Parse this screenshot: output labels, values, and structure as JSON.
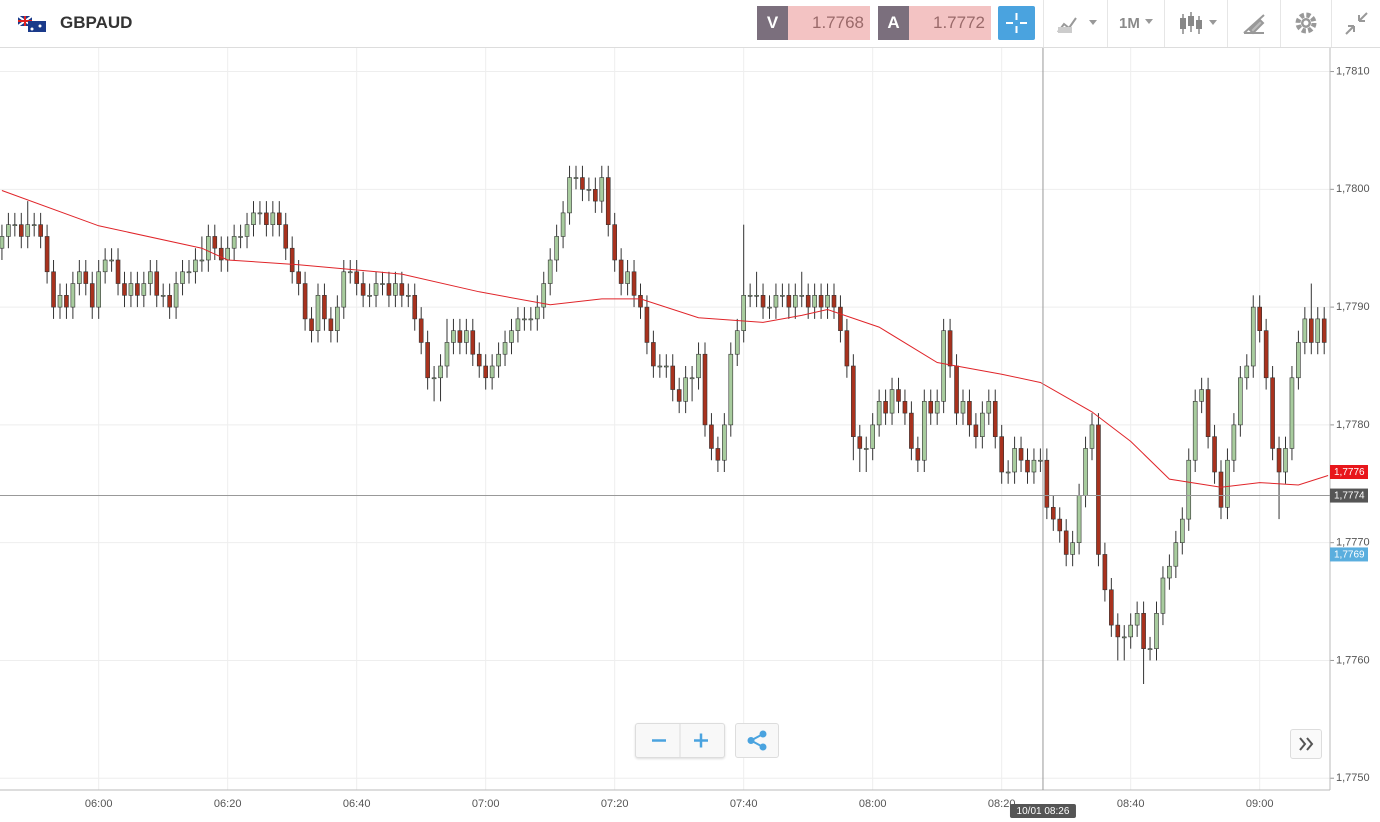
{
  "header": {
    "symbol": "GBPAUD",
    "bid_label": "V",
    "bid": "1.7768",
    "ask_label": "A",
    "ask": "1.7772",
    "timeframe": "1M"
  },
  "chart_data": {
    "type": "candlestick",
    "xlim": [
      -0.3,
      205.9
    ],
    "ylim": [
      1.7749,
      1.7812
    ],
    "xticks": [
      {
        "value": 15,
        "label": "06:00"
      },
      {
        "value": 35,
        "label": "06:20"
      },
      {
        "value": 55,
        "label": "06:40"
      },
      {
        "value": 75,
        "label": "07:00"
      },
      {
        "value": 95,
        "label": "07:20"
      },
      {
        "value": 115,
        "label": "07:40"
      },
      {
        "value": 135,
        "label": "08:00"
      },
      {
        "value": 155,
        "label": "08:20"
      },
      {
        "value": 175,
        "label": "08:40"
      },
      {
        "value": 195,
        "label": "09:00"
      }
    ],
    "yticks": [
      {
        "value": 1.781,
        "label": "1,7810"
      },
      {
        "value": 1.78,
        "label": "1,7800"
      },
      {
        "value": 1.779,
        "label": "1,7790"
      },
      {
        "value": 1.778,
        "label": "1,7780"
      },
      {
        "value": 1.777,
        "label": "1,7770"
      },
      {
        "value": 1.776,
        "label": "1,7760"
      },
      {
        "value": 1.775,
        "label": "1,7750"
      }
    ],
    "grid": true,
    "up_color": "#a8cc9e",
    "down_color": "#a8321e",
    "ohlc": [
      [
        1.7795,
        1.7797,
        1.7794,
        1.7796
      ],
      [
        1.7796,
        1.7798,
        1.7795,
        1.7797
      ],
      [
        1.7797,
        1.7798,
        1.7796,
        1.7797
      ],
      [
        1.7797,
        1.7798,
        1.7795,
        1.7796
      ],
      [
        1.7796,
        1.7799,
        1.7795,
        1.7797
      ],
      [
        1.7797,
        1.7798,
        1.7796,
        1.7797
      ],
      [
        1.7797,
        1.7798,
        1.7795,
        1.7796
      ],
      [
        1.7796,
        1.7797,
        1.7792,
        1.7793
      ],
      [
        1.7793,
        1.7794,
        1.7789,
        1.779
      ],
      [
        1.779,
        1.7792,
        1.7789,
        1.7791
      ],
      [
        1.7791,
        1.7792,
        1.7789,
        1.779
      ],
      [
        1.779,
        1.7793,
        1.7789,
        1.7792
      ],
      [
        1.7792,
        1.7794,
        1.7791,
        1.7793
      ],
      [
        1.7793,
        1.7794,
        1.7791,
        1.7792
      ],
      [
        1.7792,
        1.7793,
        1.7789,
        1.779
      ],
      [
        1.779,
        1.7794,
        1.7789,
        1.7793
      ],
      [
        1.7793,
        1.7795,
        1.7792,
        1.7794
      ],
      [
        1.7794,
        1.7795,
        1.7793,
        1.7794
      ],
      [
        1.7794,
        1.7795,
        1.7791,
        1.7792
      ],
      [
        1.7792,
        1.7793,
        1.779,
        1.7791
      ],
      [
        1.7791,
        1.7793,
        1.779,
        1.7792
      ],
      [
        1.7792,
        1.7793,
        1.779,
        1.7791
      ],
      [
        1.7791,
        1.7793,
        1.779,
        1.7792
      ],
      [
        1.7792,
        1.7794,
        1.7791,
        1.7793
      ],
      [
        1.7793,
        1.7794,
        1.779,
        1.7791
      ],
      [
        1.7791,
        1.7792,
        1.779,
        1.7791
      ],
      [
        1.7791,
        1.7792,
        1.7789,
        1.779
      ],
      [
        1.779,
        1.7793,
        1.7789,
        1.7792
      ],
      [
        1.7792,
        1.7794,
        1.7791,
        1.7793
      ],
      [
        1.7793,
        1.7794,
        1.7792,
        1.7793
      ],
      [
        1.7793,
        1.7795,
        1.7792,
        1.7794
      ],
      [
        1.7794,
        1.7796,
        1.7793,
        1.7794
      ],
      [
        1.7794,
        1.7797,
        1.7793,
        1.7796
      ],
      [
        1.7796,
        1.7797,
        1.7794,
        1.7795
      ],
      [
        1.7795,
        1.7796,
        1.7793,
        1.7794
      ],
      [
        1.7794,
        1.7796,
        1.7793,
        1.7795
      ],
      [
        1.7795,
        1.7797,
        1.7794,
        1.7796
      ],
      [
        1.7796,
        1.7797,
        1.7795,
        1.7796
      ],
      [
        1.7796,
        1.7798,
        1.7795,
        1.7797
      ],
      [
        1.7797,
        1.7799,
        1.7796,
        1.7798
      ],
      [
        1.7798,
        1.7799,
        1.7797,
        1.7798
      ],
      [
        1.7798,
        1.7799,
        1.7796,
        1.7797
      ],
      [
        1.7797,
        1.7799,
        1.7796,
        1.7798
      ],
      [
        1.7798,
        1.7799,
        1.7796,
        1.7797
      ],
      [
        1.7797,
        1.7798,
        1.7794,
        1.7795
      ],
      [
        1.7795,
        1.7796,
        1.7792,
        1.7793
      ],
      [
        1.7793,
        1.7794,
        1.7791,
        1.7792
      ],
      [
        1.7792,
        1.7793,
        1.7788,
        1.7789
      ],
      [
        1.7789,
        1.779,
        1.7787,
        1.7788
      ],
      [
        1.7788,
        1.7792,
        1.7787,
        1.7791
      ],
      [
        1.7791,
        1.7792,
        1.7788,
        1.7789
      ],
      [
        1.7789,
        1.779,
        1.7787,
        1.7788
      ],
      [
        1.7788,
        1.7791,
        1.7787,
        1.779
      ],
      [
        1.779,
        1.7794,
        1.7789,
        1.7793
      ],
      [
        1.7793,
        1.7794,
        1.7792,
        1.7793
      ],
      [
        1.7793,
        1.7794,
        1.7791,
        1.7792
      ],
      [
        1.7792,
        1.7793,
        1.779,
        1.7791
      ],
      [
        1.7791,
        1.7792,
        1.779,
        1.7791
      ],
      [
        1.7791,
        1.7793,
        1.779,
        1.7792
      ],
      [
        1.7792,
        1.7793,
        1.7791,
        1.7792
      ],
      [
        1.7792,
        1.7793,
        1.779,
        1.7791
      ],
      [
        1.7791,
        1.7793,
        1.779,
        1.7792
      ],
      [
        1.7792,
        1.7793,
        1.779,
        1.7791
      ],
      [
        1.7791,
        1.7792,
        1.779,
        1.7791
      ],
      [
        1.7791,
        1.7792,
        1.7788,
        1.7789
      ],
      [
        1.7789,
        1.779,
        1.7786,
        1.7787
      ],
      [
        1.7787,
        1.7788,
        1.7783,
        1.7784
      ],
      [
        1.7784,
        1.7785,
        1.7782,
        1.7784
      ],
      [
        1.7784,
        1.7786,
        1.7782,
        1.7785
      ],
      [
        1.7785,
        1.7789,
        1.7784,
        1.7787
      ],
      [
        1.7787,
        1.7789,
        1.7786,
        1.7788
      ],
      [
        1.7788,
        1.7789,
        1.7786,
        1.7787
      ],
      [
        1.7787,
        1.7789,
        1.7786,
        1.7788
      ],
      [
        1.7788,
        1.7789,
        1.7785,
        1.7786
      ],
      [
        1.7786,
        1.7787,
        1.7784,
        1.7785
      ],
      [
        1.7785,
        1.7786,
        1.7783,
        1.7784
      ],
      [
        1.7784,
        1.7786,
        1.7783,
        1.7785
      ],
      [
        1.7785,
        1.7787,
        1.7784,
        1.7786
      ],
      [
        1.7786,
        1.7788,
        1.7785,
        1.7787
      ],
      [
        1.7787,
        1.7789,
        1.7786,
        1.7788
      ],
      [
        1.7788,
        1.779,
        1.7787,
        1.7789
      ],
      [
        1.7789,
        1.779,
        1.7788,
        1.7789
      ],
      [
        1.7789,
        1.779,
        1.7788,
        1.7789
      ],
      [
        1.7789,
        1.7791,
        1.7788,
        1.779
      ],
      [
        1.779,
        1.7793,
        1.7789,
        1.7792
      ],
      [
        1.7792,
        1.7795,
        1.7791,
        1.7794
      ],
      [
        1.7794,
        1.7797,
        1.7793,
        1.7796
      ],
      [
        1.7796,
        1.7799,
        1.7795,
        1.7798
      ],
      [
        1.7798,
        1.7802,
        1.7797,
        1.7801
      ],
      [
        1.7801,
        1.7802,
        1.78,
        1.7801
      ],
      [
        1.7801,
        1.7802,
        1.7799,
        1.78
      ],
      [
        1.78,
        1.7801,
        1.7799,
        1.78
      ],
      [
        1.78,
        1.7801,
        1.7798,
        1.7799
      ],
      [
        1.7799,
        1.7802,
        1.7798,
        1.7801
      ],
      [
        1.7801,
        1.7802,
        1.7796,
        1.7797
      ],
      [
        1.7797,
        1.7798,
        1.7793,
        1.7794
      ],
      [
        1.7794,
        1.7795,
        1.7791,
        1.7792
      ],
      [
        1.7792,
        1.7794,
        1.7791,
        1.7793
      ],
      [
        1.7793,
        1.7794,
        1.779,
        1.7791
      ],
      [
        1.7791,
        1.7792,
        1.7789,
        1.779
      ],
      [
        1.779,
        1.7791,
        1.7786,
        1.7787
      ],
      [
        1.7787,
        1.7788,
        1.7784,
        1.7785
      ],
      [
        1.7785,
        1.7786,
        1.7784,
        1.7785
      ],
      [
        1.7785,
        1.7786,
        1.7784,
        1.7785
      ],
      [
        1.7785,
        1.7786,
        1.7782,
        1.7783
      ],
      [
        1.7783,
        1.7784,
        1.7781,
        1.7782
      ],
      [
        1.7782,
        1.7785,
        1.7781,
        1.7784
      ],
      [
        1.7784,
        1.7785,
        1.7782,
        1.7784
      ],
      [
        1.7784,
        1.7787,
        1.7783,
        1.7786
      ],
      [
        1.7786,
        1.7787,
        1.7779,
        1.778
      ],
      [
        1.778,
        1.7781,
        1.7777,
        1.7778
      ],
      [
        1.7778,
        1.7779,
        1.7776,
        1.7777
      ],
      [
        1.7777,
        1.7781,
        1.7776,
        1.778
      ],
      [
        1.778,
        1.7787,
        1.7779,
        1.7786
      ],
      [
        1.7786,
        1.7789,
        1.7785,
        1.7788
      ],
      [
        1.7788,
        1.7797,
        1.7787,
        1.7791
      ],
      [
        1.7791,
        1.7792,
        1.779,
        1.7791
      ],
      [
        1.7791,
        1.7793,
        1.779,
        1.7791
      ],
      [
        1.7791,
        1.7792,
        1.7789,
        1.779
      ],
      [
        1.779,
        1.7791,
        1.7789,
        1.779
      ],
      [
        1.779,
        1.7792,
        1.7789,
        1.7791
      ],
      [
        1.7791,
        1.7792,
        1.779,
        1.7791
      ],
      [
        1.7791,
        1.7792,
        1.7789,
        1.779
      ],
      [
        1.779,
        1.7792,
        1.7789,
        1.7791
      ],
      [
        1.7791,
        1.7793,
        1.779,
        1.7791
      ],
      [
        1.7791,
        1.7792,
        1.7789,
        1.779
      ],
      [
        1.779,
        1.7792,
        1.7789,
        1.7791
      ],
      [
        1.7791,
        1.7792,
        1.7789,
        1.779
      ],
      [
        1.779,
        1.7792,
        1.7789,
        1.7791
      ],
      [
        1.7791,
        1.7792,
        1.7789,
        1.779
      ],
      [
        1.779,
        1.7791,
        1.7787,
        1.7788
      ],
      [
        1.7788,
        1.7789,
        1.7784,
        1.7785
      ],
      [
        1.7785,
        1.7786,
        1.7777,
        1.7779
      ],
      [
        1.7779,
        1.778,
        1.7776,
        1.7778
      ],
      [
        1.7778,
        1.7779,
        1.7776,
        1.7778
      ],
      [
        1.7778,
        1.7781,
        1.7777,
        1.778
      ],
      [
        1.778,
        1.7783,
        1.7779,
        1.7782
      ],
      [
        1.7782,
        1.7783,
        1.778,
        1.7781
      ],
      [
        1.7781,
        1.7784,
        1.778,
        1.7783
      ],
      [
        1.7783,
        1.7784,
        1.7781,
        1.7782
      ],
      [
        1.7782,
        1.7783,
        1.778,
        1.7781
      ],
      [
        1.7781,
        1.7782,
        1.7777,
        1.7778
      ],
      [
        1.7778,
        1.7779,
        1.7776,
        1.7777
      ],
      [
        1.7777,
        1.7783,
        1.7776,
        1.7782
      ],
      [
        1.7782,
        1.7783,
        1.778,
        1.7781
      ],
      [
        1.7781,
        1.7783,
        1.778,
        1.7782
      ],
      [
        1.7782,
        1.7789,
        1.7781,
        1.7788
      ],
      [
        1.7788,
        1.7789,
        1.7784,
        1.7785
      ],
      [
        1.7785,
        1.7786,
        1.778,
        1.7781
      ],
      [
        1.7781,
        1.7783,
        1.778,
        1.7782
      ],
      [
        1.7782,
        1.7783,
        1.7779,
        1.778
      ],
      [
        1.778,
        1.7781,
        1.7778,
        1.7779
      ],
      [
        1.7779,
        1.7782,
        1.7778,
        1.7781
      ],
      [
        1.7781,
        1.7783,
        1.778,
        1.7782
      ],
      [
        1.7782,
        1.7783,
        1.7778,
        1.7779
      ],
      [
        1.7779,
        1.778,
        1.7775,
        1.7776
      ],
      [
        1.7776,
        1.7777,
        1.7775,
        1.7776
      ],
      [
        1.7776,
        1.7779,
        1.7775,
        1.7778
      ],
      [
        1.7778,
        1.7779,
        1.7776,
        1.7777
      ],
      [
        1.7777,
        1.7778,
        1.7775,
        1.7776
      ],
      [
        1.7776,
        1.7778,
        1.7775,
        1.7777
      ],
      [
        1.7777,
        1.7778,
        1.7776,
        1.7777
      ],
      [
        1.7777,
        1.7778,
        1.7772,
        1.7773
      ],
      [
        1.7773,
        1.7774,
        1.7771,
        1.7772
      ],
      [
        1.7772,
        1.7773,
        1.777,
        1.7771
      ],
      [
        1.7771,
        1.7772,
        1.7768,
        1.7769
      ],
      [
        1.7769,
        1.7771,
        1.7768,
        1.777
      ],
      [
        1.777,
        1.7775,
        1.7769,
        1.7774
      ],
      [
        1.7774,
        1.7779,
        1.7773,
        1.7778
      ],
      [
        1.7778,
        1.7781,
        1.7777,
        1.778
      ],
      [
        1.778,
        1.7781,
        1.7768,
        1.7769
      ],
      [
        1.7769,
        1.777,
        1.7765,
        1.7766
      ],
      [
        1.7766,
        1.7767,
        1.7762,
        1.7763
      ],
      [
        1.7763,
        1.7764,
        1.776,
        1.7762
      ],
      [
        1.7762,
        1.7763,
        1.776,
        1.7762
      ],
      [
        1.7762,
        1.7764,
        1.7761,
        1.7763
      ],
      [
        1.7763,
        1.7765,
        1.7762,
        1.7764
      ],
      [
        1.7764,
        1.7765,
        1.7758,
        1.7761
      ],
      [
        1.7761,
        1.7762,
        1.776,
        1.7761
      ],
      [
        1.7761,
        1.7765,
        1.776,
        1.7764
      ],
      [
        1.7764,
        1.7768,
        1.7763,
        1.7767
      ],
      [
        1.7767,
        1.7769,
        1.7766,
        1.7768
      ],
      [
        1.7768,
        1.7771,
        1.7767,
        1.777
      ],
      [
        1.777,
        1.7773,
        1.7769,
        1.7772
      ],
      [
        1.7772,
        1.7778,
        1.7771,
        1.7777
      ],
      [
        1.7777,
        1.7783,
        1.7776,
        1.7782
      ],
      [
        1.7782,
        1.7784,
        1.7781,
        1.7783
      ],
      [
        1.7783,
        1.7784,
        1.7778,
        1.7779
      ],
      [
        1.7779,
        1.778,
        1.7775,
        1.7776
      ],
      [
        1.7776,
        1.7777,
        1.7772,
        1.7773
      ],
      [
        1.7773,
        1.7778,
        1.7772,
        1.7777
      ],
      [
        1.7777,
        1.7781,
        1.7776,
        1.778
      ],
      [
        1.778,
        1.7785,
        1.7779,
        1.7784
      ],
      [
        1.7784,
        1.7786,
        1.7783,
        1.7785
      ],
      [
        1.7785,
        1.7791,
        1.7784,
        1.779
      ],
      [
        1.779,
        1.7791,
        1.7787,
        1.7788
      ],
      [
        1.7788,
        1.7789,
        1.7783,
        1.7784
      ],
      [
        1.7784,
        1.7785,
        1.7777,
        1.7778
      ],
      [
        1.7778,
        1.7779,
        1.7772,
        1.7776
      ],
      [
        1.7776,
        1.7779,
        1.7775,
        1.7778
      ],
      [
        1.7778,
        1.7785,
        1.7777,
        1.7784
      ],
      [
        1.7784,
        1.7788,
        1.7783,
        1.7787
      ],
      [
        1.7787,
        1.779,
        1.7786,
        1.7789
      ],
      [
        1.7789,
        1.7792,
        1.7786,
        1.7787
      ],
      [
        1.7787,
        1.779,
        1.7786,
        1.7789
      ],
      [
        1.7789,
        1.779,
        1.7786,
        1.7787
      ]
    ],
    "ma": {
      "color": "#e0252a",
      "x": [
        0,
        15,
        31,
        35,
        46,
        62,
        74,
        85,
        93,
        99,
        108,
        118,
        124,
        128,
        136,
        145,
        155,
        161,
        169,
        175,
        181,
        189,
        195,
        201,
        205.6
      ],
      "values": [
        1.77999,
        1.77969,
        1.7795,
        1.7794,
        1.77936,
        1.77928,
        1.77913,
        1.77902,
        1.77907,
        1.77907,
        1.77891,
        1.77887,
        1.77893,
        1.77898,
        1.77883,
        1.77853,
        1.77843,
        1.77836,
        1.77811,
        1.77786,
        1.77754,
        1.77747,
        1.77751,
        1.77749,
        1.77757
      ]
    },
    "price_markers": [
      {
        "value": 1.7776,
        "label": "1,7776",
        "color": "#e8161b"
      },
      {
        "value": 1.7769,
        "label": "1,7769",
        "color": "#5aaede"
      }
    ],
    "crosshair": {
      "x": 161.4,
      "label": "10/01 08:26",
      "price": {
        "value": 1.7774,
        "label": "1,7774"
      }
    }
  }
}
